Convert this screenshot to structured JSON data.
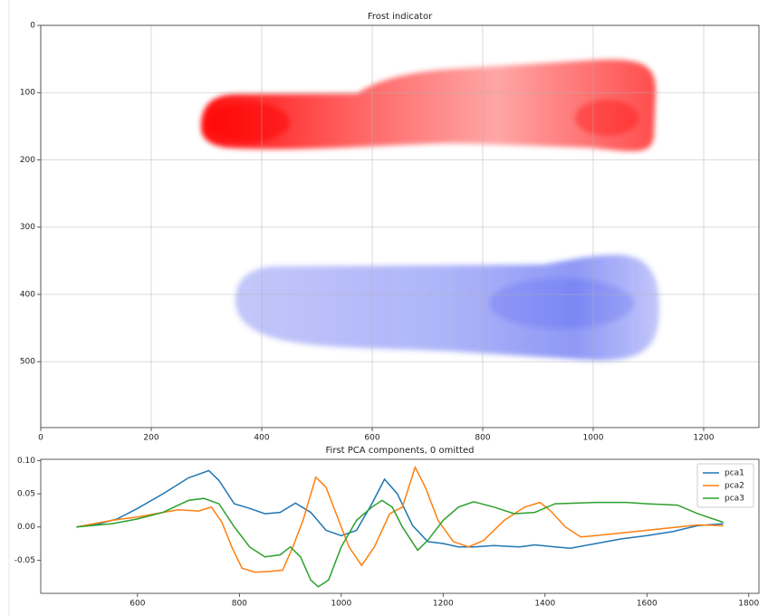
{
  "chart_data": [
    {
      "type": "image",
      "title": "Frost indicator",
      "xlim": [
        0,
        1300
      ],
      "ylim": [
        598,
        0
      ],
      "xticks": [
        0,
        200,
        400,
        600,
        800,
        1000,
        1200
      ],
      "yticks": [
        0,
        100,
        200,
        300,
        400,
        500
      ],
      "grid": true
    },
    {
      "type": "line",
      "title": "First PCA components, 0 omitted",
      "xlim": [
        410,
        1820
      ],
      "ylim": [
        -0.1,
        0.102
      ],
      "xticks": [
        600,
        800,
        1000,
        1200,
        1400,
        1600,
        1800
      ],
      "yticks": [
        {
          "value": 0.1,
          "label": "0.10"
        },
        {
          "value": 0.05,
          "label": "0.05"
        },
        {
          "value": 0,
          "label": "0.00"
        },
        {
          "value": -0.05,
          "label": "-0.05"
        }
      ],
      "grid": false,
      "legend": "upper right",
      "series": [
        {
          "name": "pca1",
          "color": "#1f77b4",
          "x": [
            480,
            520,
            560,
            600,
            650,
            700,
            740,
            760,
            790,
            820,
            850,
            880,
            910,
            940,
            970,
            1000,
            1030,
            1060,
            1085,
            1110,
            1140,
            1170,
            1200,
            1230,
            1260,
            1300,
            1350,
            1380,
            1420,
            1450,
            1500,
            1550,
            1600,
            1650,
            1700,
            1750
          ],
          "values": [
            0,
            0.004,
            0.012,
            0.028,
            0.05,
            0.074,
            0.085,
            0.07,
            0.035,
            0.028,
            0.02,
            0.022,
            0.036,
            0.022,
            -0.005,
            -0.013,
            -0.005,
            0.035,
            0.072,
            0.05,
            0.002,
            -0.022,
            -0.025,
            -0.03,
            -0.03,
            -0.028,
            -0.03,
            -0.027,
            -0.03,
            -0.032,
            -0.025,
            -0.018,
            -0.013,
            -0.007,
            0.002,
            0.005
          ]
        },
        {
          "name": "pca2",
          "color": "#ff7f0e",
          "x": [
            480,
            550,
            600,
            650,
            680,
            720,
            745,
            765,
            785,
            805,
            830,
            860,
            885,
            905,
            925,
            950,
            970,
            990,
            1015,
            1040,
            1065,
            1095,
            1120,
            1145,
            1165,
            1190,
            1220,
            1250,
            1280,
            1320,
            1360,
            1390,
            1410,
            1440,
            1470,
            1500,
            1600,
            1700,
            1750
          ],
          "values": [
            0,
            0.01,
            0.015,
            0.022,
            0.026,
            0.024,
            0.03,
            0.008,
            -0.03,
            -0.062,
            -0.068,
            -0.067,
            -0.065,
            -0.03,
            0.01,
            0.075,
            0.06,
            0.02,
            -0.03,
            -0.058,
            -0.03,
            0.02,
            0.03,
            0.09,
            0.06,
            0.01,
            -0.022,
            -0.03,
            -0.02,
            0.01,
            0.03,
            0.037,
            0.025,
            0,
            -0.015,
            -0.013,
            -0.005,
            0.003,
            0.002
          ]
        },
        {
          "name": "pca3",
          "color": "#2ca02c",
          "x": [
            480,
            550,
            600,
            650,
            700,
            730,
            760,
            790,
            820,
            850,
            880,
            900,
            920,
            940,
            955,
            975,
            1000,
            1030,
            1060,
            1080,
            1100,
            1120,
            1150,
            1170,
            1200,
            1230,
            1260,
            1300,
            1340,
            1380,
            1420,
            1500,
            1560,
            1600,
            1660,
            1700,
            1750
          ],
          "values": [
            0,
            0.005,
            0.012,
            0.022,
            0.04,
            0.043,
            0.035,
            0,
            -0.03,
            -0.045,
            -0.042,
            -0.03,
            -0.045,
            -0.08,
            -0.09,
            -0.08,
            -0.03,
            0.01,
            0.03,
            0.04,
            0.03,
            0,
            -0.035,
            -0.02,
            0.01,
            0.03,
            0.038,
            0.03,
            0.02,
            0.022,
            0.035,
            0.037,
            0.037,
            0.035,
            0.033,
            0.02,
            0.007
          ]
        }
      ]
    }
  ]
}
